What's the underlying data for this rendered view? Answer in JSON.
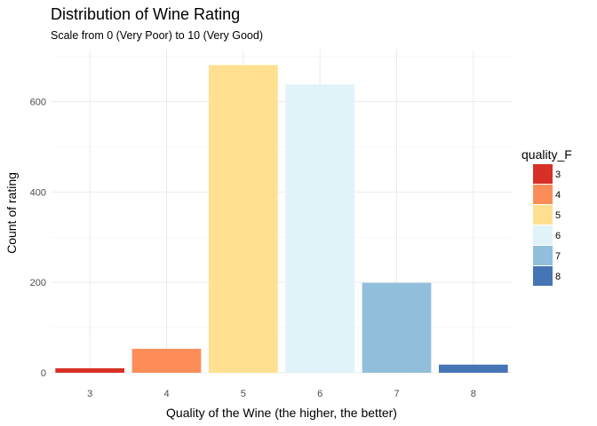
{
  "chart_data": {
    "type": "bar",
    "title": "Distribution of Wine Rating",
    "subtitle": "Scale from 0 (Very Poor) to 10 (Very Good)",
    "xlabel": "Quality of the Wine (the higher, the better)",
    "ylabel": "Count of rating",
    "categories": [
      "3",
      "4",
      "5",
      "6",
      "7",
      "8"
    ],
    "values": [
      10,
      53,
      681,
      638,
      199,
      18
    ],
    "colors": [
      "#d73027",
      "#fc8d59",
      "#fee090",
      "#e0f3f8",
      "#91bfdb",
      "#4575b4"
    ],
    "ylim": [
      0,
      715
    ],
    "yticks": [
      0,
      200,
      400,
      600
    ],
    "yticklabels": [
      "0",
      "200",
      "400",
      "600"
    ],
    "grid": true,
    "legend": {
      "title": "quality_F",
      "position": "right",
      "items": [
        "3",
        "4",
        "5",
        "6",
        "7",
        "8"
      ]
    }
  }
}
